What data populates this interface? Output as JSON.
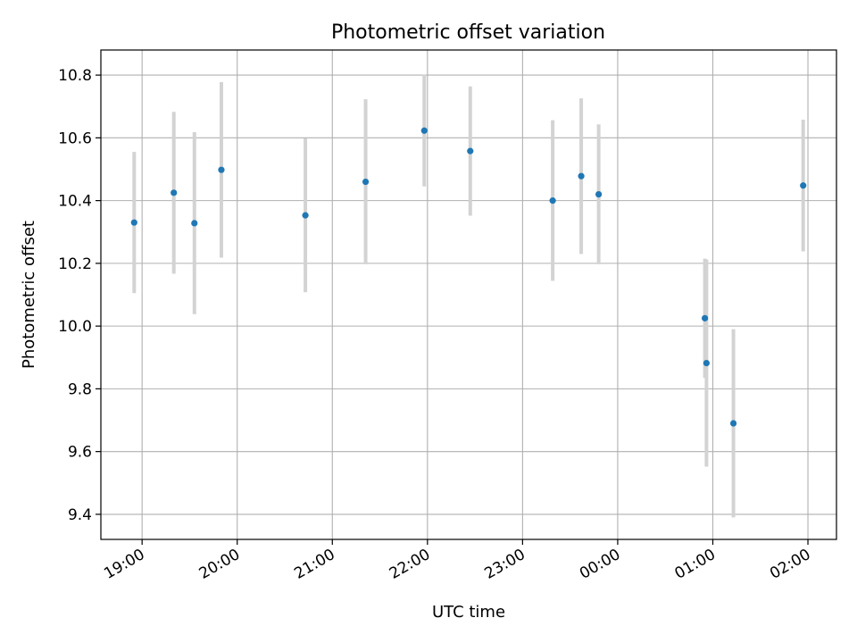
{
  "chart_data": {
    "type": "scatter",
    "title": "Photometric offset variation",
    "xlabel": "UTC time",
    "ylabel": "Photometric offset",
    "x_ticks": [
      "19:00",
      "20:00",
      "21:00",
      "22:00",
      "23:00",
      "00:00",
      "01:00",
      "02:00"
    ],
    "y_ticks": [
      "9.4",
      "9.6",
      "9.8",
      "10.0",
      "10.2",
      "10.4",
      "10.6",
      "10.8"
    ],
    "xlim": [
      "18:34",
      "02:18"
    ],
    "ylim": [
      9.32,
      10.88
    ],
    "grid": true,
    "colors": {
      "point": "#1f77b4",
      "errorbar": "#d3d3d3"
    },
    "points": [
      {
        "t": "18:55",
        "y": 10.33,
        "err": 0.225
      },
      {
        "t": "19:20",
        "y": 10.425,
        "err": 0.258
      },
      {
        "t": "19:33",
        "y": 10.328,
        "err": 0.29
      },
      {
        "t": "19:50",
        "y": 10.498,
        "err": 0.28
      },
      {
        "t": "20:43",
        "y": 10.353,
        "err": 0.245
      },
      {
        "t": "21:21",
        "y": 10.46,
        "err": 0.263
      },
      {
        "t": "21:58",
        "y": 10.623,
        "err": 0.178
      },
      {
        "t": "22:27",
        "y": 10.558,
        "err": 0.206
      },
      {
        "t": "23:19",
        "y": 10.4,
        "err": 0.256
      },
      {
        "t": "23:37",
        "y": 10.478,
        "err": 0.248
      },
      {
        "t": "23:48",
        "y": 10.42,
        "err": 0.223
      },
      {
        "t": "00:55",
        "y": 10.025,
        "err": 0.19
      },
      {
        "t": "00:56",
        "y": 9.882,
        "err": 0.33
      },
      {
        "t": "01:13",
        "y": 9.69,
        "err": 0.3
      },
      {
        "t": "01:57",
        "y": 10.448,
        "err": 0.21
      }
    ]
  }
}
